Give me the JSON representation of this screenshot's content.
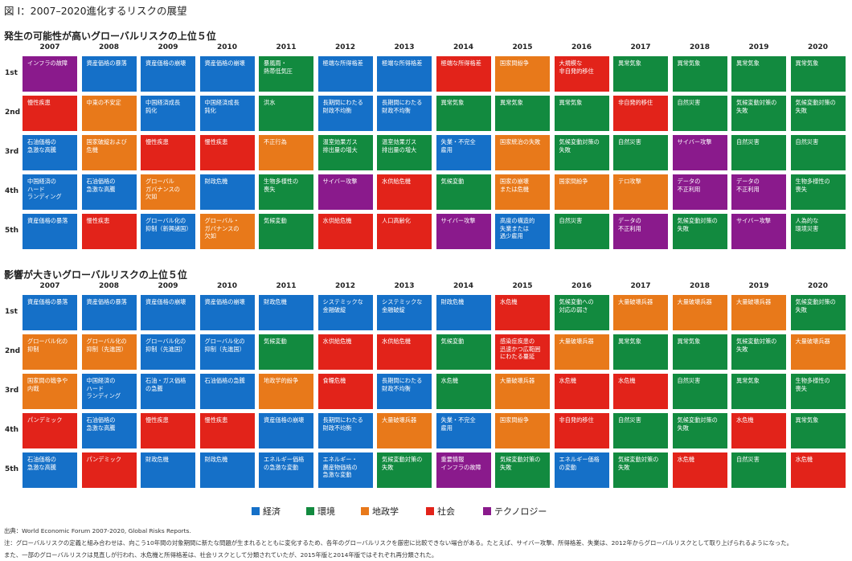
{
  "title": "図 I：2007–2020進化するリスクの展望",
  "categories_colors": {
    "econ": "#1570c8",
    "env": "#128a3f",
    "geo": "#e8791a",
    "soc": "#e2231a",
    "tech": "#8a1a8c"
  },
  "legend": [
    {
      "key": "econ",
      "label": "経済"
    },
    {
      "key": "env",
      "label": "環境"
    },
    {
      "key": "geo",
      "label": "地政学"
    },
    {
      "key": "soc",
      "label": "社会"
    },
    {
      "key": "tech",
      "label": "テクノロジー"
    }
  ],
  "notes": {
    "source": "出典：World Economic Forum 2007-2020, Global Risks Reports.",
    "note1": "注：グローバルリスクの定義と組み合わせは、向こう10年間の対象期間に新たな問題が生まれるとともに変化するため、各年のグローバルリスクを厳密に比較できない場合がある。たとえば、サイバー攻撃、所得格差、失業は、2012年からグローバルリスクとして取り上げられるようになった。",
    "note2": "また、一部のグローバルリスクは見直しが行われ、水危機と所得格差は、社会リスクとして分類されていたが、2015年版と2014年版ではそれぞれ再分類された。"
  },
  "chart_data": [
    {
      "type": "table",
      "title": "発生の可能性が高いグローバルリスクの上位５位",
      "years": [
        "2007",
        "2008",
        "2009",
        "2010",
        "2011",
        "2012",
        "2013",
        "2014",
        "2015",
        "2016",
        "2017",
        "2018",
        "2019",
        "2020"
      ],
      "ranks": [
        "1st",
        "2nd",
        "3rd",
        "4th",
        "5th"
      ],
      "rows": [
        [
          {
            "t": "インフラの故障",
            "c": "tech"
          },
          {
            "t": "資産価格の暴落",
            "c": "econ"
          },
          {
            "t": "資産価格の崩壊",
            "c": "econ"
          },
          {
            "t": "資産価格の崩壊",
            "c": "econ"
          },
          {
            "t": "暴風雨・\n熱帯低気圧",
            "c": "env"
          },
          {
            "t": "極端な所得格差",
            "c": "econ"
          },
          {
            "t": "極端な所得格差",
            "c": "econ"
          },
          {
            "t": "極端な所得格差",
            "c": "soc"
          },
          {
            "t": "国家間紛争",
            "c": "geo"
          },
          {
            "t": "大規模な\n非自発的移住",
            "c": "soc"
          },
          {
            "t": "異常気象",
            "c": "env"
          },
          {
            "t": "異常気象",
            "c": "env"
          },
          {
            "t": "異常気象",
            "c": "env"
          },
          {
            "t": "異常気象",
            "c": "env"
          }
        ],
        [
          {
            "t": "慢性疾患",
            "c": "soc"
          },
          {
            "t": "中東の不安定",
            "c": "geo"
          },
          {
            "t": "中国経済成長\n鈍化",
            "c": "econ"
          },
          {
            "t": "中国経済成長\n鈍化",
            "c": "econ"
          },
          {
            "t": "洪水",
            "c": "env"
          },
          {
            "t": "長期間にわたる\n財政不均衡",
            "c": "econ"
          },
          {
            "t": "長期間にわたる\n財政不均衡",
            "c": "econ"
          },
          {
            "t": "異常気象",
            "c": "env"
          },
          {
            "t": "異常気象",
            "c": "env"
          },
          {
            "t": "異常気象",
            "c": "env"
          },
          {
            "t": "非自発的移住",
            "c": "soc"
          },
          {
            "t": "自然災害",
            "c": "env"
          },
          {
            "t": "気候変動対策の\n失敗",
            "c": "env"
          },
          {
            "t": "気候変動対策の\n失敗",
            "c": "env"
          }
        ],
        [
          {
            "t": "石油価格の\n急激な高騰",
            "c": "econ"
          },
          {
            "t": "国家破綻および\n危機",
            "c": "geo"
          },
          {
            "t": "慢性疾患",
            "c": "soc"
          },
          {
            "t": "慢性疾患",
            "c": "soc"
          },
          {
            "t": "不正行為",
            "c": "geo"
          },
          {
            "t": "温室効果ガス\n排出量の増大",
            "c": "env"
          },
          {
            "t": "温室効果ガス\n排出量の増大",
            "c": "env"
          },
          {
            "t": "失業・不完全\n雇用",
            "c": "econ"
          },
          {
            "t": "国家統治の失敗",
            "c": "geo"
          },
          {
            "t": "気候変動対策の\n失敗",
            "c": "env"
          },
          {
            "t": "自然災害",
            "c": "env"
          },
          {
            "t": "サイバー攻撃",
            "c": "tech"
          },
          {
            "t": "自然災害",
            "c": "env"
          },
          {
            "t": "自然災害",
            "c": "env"
          }
        ],
        [
          {
            "t": "中国経済の\nハード\nランディング",
            "c": "econ"
          },
          {
            "t": "石油価格の\n急激な高騰",
            "c": "econ"
          },
          {
            "t": "グローバル\nガバナンスの\n欠如",
            "c": "geo"
          },
          {
            "t": "財政危機",
            "c": "econ"
          },
          {
            "t": "生物多様性の\n喪失",
            "c": "env"
          },
          {
            "t": "サイバー攻撃",
            "c": "tech"
          },
          {
            "t": "水供給危機",
            "c": "soc"
          },
          {
            "t": "気候変動",
            "c": "env"
          },
          {
            "t": "国家の崩壊\nまたは危機",
            "c": "geo"
          },
          {
            "t": "国家間紛争",
            "c": "geo"
          },
          {
            "t": "テロ攻撃",
            "c": "geo"
          },
          {
            "t": "データの\n不正利用",
            "c": "tech"
          },
          {
            "t": "データの\n不正利用",
            "c": "tech"
          },
          {
            "t": "生物多様性の\n喪失",
            "c": "env"
          }
        ],
        [
          {
            "t": "資産価格の暴落",
            "c": "econ"
          },
          {
            "t": "慢性疾患",
            "c": "soc"
          },
          {
            "t": "グローバル化の\n抑制（新興諸国）",
            "c": "econ"
          },
          {
            "t": "グローバル・\nガバナンスの\n欠如",
            "c": "geo"
          },
          {
            "t": "気候変動",
            "c": "env"
          },
          {
            "t": "水供給危機",
            "c": "soc"
          },
          {
            "t": "人口高齢化",
            "c": "soc"
          },
          {
            "t": "サイバー攻撃",
            "c": "tech"
          },
          {
            "t": "高度の構造的\n失業または\n過少雇用",
            "c": "econ"
          },
          {
            "t": "自然災害",
            "c": "env"
          },
          {
            "t": "データの\n不正利用",
            "c": "tech"
          },
          {
            "t": "気候変動対策の\n失敗",
            "c": "env"
          },
          {
            "t": "サイバー攻撃",
            "c": "tech"
          },
          {
            "t": "人為的な\n環境災害",
            "c": "env"
          }
        ]
      ]
    },
    {
      "type": "table",
      "title": "影響が大きいグローバルリスクの上位５位",
      "years": [
        "2007",
        "2008",
        "2009",
        "2010",
        "2011",
        "2012",
        "2013",
        "2014",
        "2015",
        "2016",
        "2017",
        "2018",
        "2019",
        "2020"
      ],
      "ranks": [
        "1st",
        "2nd",
        "3rd",
        "4th",
        "5th"
      ],
      "rows": [
        [
          {
            "t": "資産価格の暴落",
            "c": "econ"
          },
          {
            "t": "資産価格の暴落",
            "c": "econ"
          },
          {
            "t": "資産価格の崩壊",
            "c": "econ"
          },
          {
            "t": "資産価格の崩壊",
            "c": "econ"
          },
          {
            "t": "財政危機",
            "c": "econ"
          },
          {
            "t": "システミックな\n金融破綻",
            "c": "econ"
          },
          {
            "t": "システミックな\n金融破綻",
            "c": "econ"
          },
          {
            "t": "財政危機",
            "c": "econ"
          },
          {
            "t": "水危機",
            "c": "soc"
          },
          {
            "t": "気候変動への\n対応の弱さ",
            "c": "env"
          },
          {
            "t": "大量破壊兵器",
            "c": "geo"
          },
          {
            "t": "大量破壊兵器",
            "c": "geo"
          },
          {
            "t": "大量破壊兵器",
            "c": "geo"
          },
          {
            "t": "気候変動対策の\n失敗",
            "c": "env"
          }
        ],
        [
          {
            "t": "グローバル化の\n抑制",
            "c": "geo"
          },
          {
            "t": "グローバル化の\n抑制（先進国）",
            "c": "geo"
          },
          {
            "t": "グローバル化の\n抑制（先進国）",
            "c": "econ"
          },
          {
            "t": "グローバル化の\n抑制（先進国）",
            "c": "econ"
          },
          {
            "t": "気候変動",
            "c": "env"
          },
          {
            "t": "水供給危機",
            "c": "soc"
          },
          {
            "t": "水供給危機",
            "c": "soc"
          },
          {
            "t": "気候変動",
            "c": "env"
          },
          {
            "t": "感染症疾患の\n迅速かつ広範囲\nにわたる蔓延",
            "c": "soc"
          },
          {
            "t": "大量破壊兵器",
            "c": "geo"
          },
          {
            "t": "異常気象",
            "c": "env"
          },
          {
            "t": "異常気象",
            "c": "env"
          },
          {
            "t": "気候変動対策の\n失敗",
            "c": "env"
          },
          {
            "t": "大量破壊兵器",
            "c": "geo"
          }
        ],
        [
          {
            "t": "国家間の戦争や\n内戦",
            "c": "geo"
          },
          {
            "t": "中国経済の\nハード\nランディング",
            "c": "econ"
          },
          {
            "t": "石油・ガス価格\nの急騰",
            "c": "econ"
          },
          {
            "t": "石油価格の急騰",
            "c": "econ"
          },
          {
            "t": "地政学的紛争",
            "c": "geo"
          },
          {
            "t": "食糧危機",
            "c": "soc"
          },
          {
            "t": "長期間にわたる\n財政不均衡",
            "c": "econ"
          },
          {
            "t": "水危機",
            "c": "env"
          },
          {
            "t": "大量破壊兵器",
            "c": "geo"
          },
          {
            "t": "水危機",
            "c": "soc"
          },
          {
            "t": "水危機",
            "c": "soc"
          },
          {
            "t": "自然災害",
            "c": "env"
          },
          {
            "t": "異常気象",
            "c": "env"
          },
          {
            "t": "生物多様性の\n喪失",
            "c": "env"
          }
        ],
        [
          {
            "t": "パンデミック",
            "c": "soc"
          },
          {
            "t": "石油価格の\n急激な高騰",
            "c": "econ"
          },
          {
            "t": "慢性疾患",
            "c": "soc"
          },
          {
            "t": "慢性疾患",
            "c": "soc"
          },
          {
            "t": "資産価格の崩壊",
            "c": "econ"
          },
          {
            "t": "長期間にわたる\n財政不均衡",
            "c": "econ"
          },
          {
            "t": "大量破壊兵器",
            "c": "geo"
          },
          {
            "t": "失業・不完全\n雇用",
            "c": "econ"
          },
          {
            "t": "国家間紛争",
            "c": "geo"
          },
          {
            "t": "非自発的移住",
            "c": "soc"
          },
          {
            "t": "自然災害",
            "c": "env"
          },
          {
            "t": "気候変動対策の\n失敗",
            "c": "env"
          },
          {
            "t": "水危機",
            "c": "soc"
          },
          {
            "t": "異常気象",
            "c": "env"
          }
        ],
        [
          {
            "t": "石油価格の\n急激な高騰",
            "c": "econ"
          },
          {
            "t": "パンデミック",
            "c": "soc"
          },
          {
            "t": "財政危機",
            "c": "econ"
          },
          {
            "t": "財政危機",
            "c": "econ"
          },
          {
            "t": "エネルギー価格\nの急激な変動",
            "c": "econ"
          },
          {
            "t": "エネルギー・\n農産物価格の\n急激な変動",
            "c": "econ"
          },
          {
            "t": "気候変動対策の\n失敗",
            "c": "env"
          },
          {
            "t": "重要情報\nインフラの故障",
            "c": "tech"
          },
          {
            "t": "気候変動対策の\n失敗",
            "c": "env"
          },
          {
            "t": "エネルギー価格\nの変動",
            "c": "econ"
          },
          {
            "t": "気候変動対策の\n失敗",
            "c": "env"
          },
          {
            "t": "水危機",
            "c": "soc"
          },
          {
            "t": "自然災害",
            "c": "env"
          },
          {
            "t": "水危機",
            "c": "soc"
          }
        ]
      ]
    }
  ]
}
